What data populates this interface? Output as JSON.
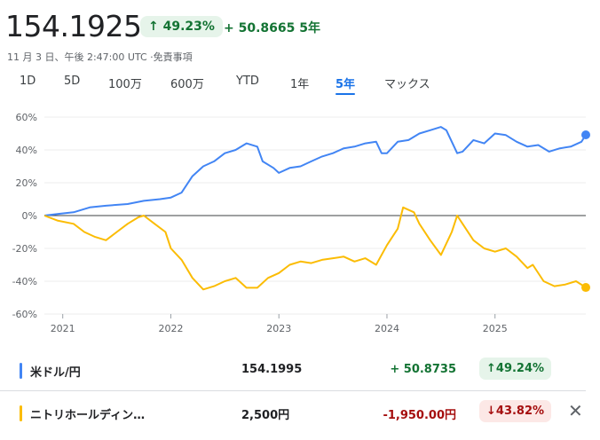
{
  "header": {
    "price": "154.1925",
    "change_pct": "49.23%",
    "change_arrow": "↑",
    "change_abs": "+ 50.8665",
    "change_period": "5年",
    "meta": "11 月 3 日、午後 2:47:00 UTC ·免責事項"
  },
  "tabs": [
    {
      "label": "1D",
      "active": false
    },
    {
      "label": "5D",
      "active": false
    },
    {
      "label": "100万",
      "active": false
    },
    {
      "label": "600万",
      "active": false
    },
    {
      "label": "YTD",
      "active": false
    },
    {
      "label": "1年",
      "active": false
    },
    {
      "label": "5年",
      "active": true
    },
    {
      "label": "マックス",
      "active": false
    }
  ],
  "comparison": [
    {
      "name": "米ドル/円",
      "value": "154.1995",
      "delta": "+ 50.8735",
      "pct": "49.24%",
      "arrow": "↑",
      "color": "#4285f4",
      "direction": "up"
    },
    {
      "name": "ニトリホールディン…",
      "value": "2,500円",
      "delta": "-1,950.00円",
      "pct": "43.82%",
      "arrow": "↓",
      "color": "#fbbc04",
      "direction": "down",
      "close": "✕"
    }
  ],
  "colors": {
    "up": "#137333",
    "down": "#a50e0e",
    "usdjpy": "#4285f4",
    "nitori": "#fbbc04",
    "active_tab": "#1a73e8"
  },
  "chart_data": {
    "type": "line",
    "ylim": [
      -60,
      60
    ],
    "yticks": [
      "60%",
      "40%",
      "20%",
      "0%",
      "-20%",
      "-40%",
      "-60%"
    ],
    "ytick_values": [
      60,
      40,
      20,
      0,
      -20,
      -40,
      -60
    ],
    "xlim": [
      2020.83,
      2025.84
    ],
    "xticks": [
      "2021",
      "2022",
      "2023",
      "2024",
      "2025"
    ],
    "xtick_values": [
      2021,
      2022,
      2023,
      2024,
      2025
    ],
    "grid": true,
    "series": [
      {
        "name": "米ドル/円",
        "color": "#4285f4",
        "x": [
          2020.83,
          2020.95,
          2021.1,
          2021.25,
          2021.4,
          2021.6,
          2021.75,
          2021.9,
          2022.0,
          2022.1,
          2022.2,
          2022.3,
          2022.4,
          2022.5,
          2022.6,
          2022.7,
          2022.8,
          2022.85,
          2022.95,
          2023.0,
          2023.1,
          2023.2,
          2023.3,
          2023.4,
          2023.5,
          2023.6,
          2023.7,
          2023.8,
          2023.9,
          2023.95,
          2024.0,
          2024.1,
          2024.2,
          2024.3,
          2024.4,
          2024.5,
          2024.55,
          2024.65,
          2024.7,
          2024.8,
          2024.9,
          2025.0,
          2025.1,
          2025.2,
          2025.3,
          2025.4,
          2025.5,
          2025.6,
          2025.7,
          2025.8,
          2025.84
        ],
        "y": [
          0,
          1,
          2,
          5,
          6,
          7,
          9,
          10,
          11,
          14,
          24,
          30,
          33,
          38,
          40,
          44,
          42,
          33,
          29,
          26,
          29,
          30,
          33,
          36,
          38,
          41,
          42,
          44,
          45,
          38,
          38,
          45,
          46,
          50,
          52,
          54,
          52,
          38,
          39,
          46,
          44,
          50,
          49,
          45,
          42,
          43,
          39,
          41,
          42,
          45,
          49.2
        ]
      },
      {
        "name": "ニトリホールディン…",
        "color": "#fbbc04",
        "x": [
          2020.83,
          2020.95,
          2021.1,
          2021.2,
          2021.3,
          2021.4,
          2021.5,
          2021.6,
          2021.7,
          2021.75,
          2021.85,
          2021.95,
          2022.0,
          2022.1,
          2022.2,
          2022.3,
          2022.4,
          2022.5,
          2022.6,
          2022.7,
          2022.8,
          2022.9,
          2023.0,
          2023.1,
          2023.2,
          2023.3,
          2023.4,
          2023.5,
          2023.6,
          2023.7,
          2023.8,
          2023.9,
          2024.0,
          2024.1,
          2024.15,
          2024.25,
          2024.3,
          2024.4,
          2024.5,
          2024.6,
          2024.65,
          2024.7,
          2024.8,
          2024.9,
          2025.0,
          2025.1,
          2025.2,
          2025.3,
          2025.35,
          2025.45,
          2025.55,
          2025.65,
          2025.75,
          2025.84
        ],
        "y": [
          0,
          -3,
          -5,
          -10,
          -13,
          -15,
          -10,
          -5,
          -1,
          0,
          -5,
          -10,
          -20,
          -27,
          -38,
          -45,
          -43,
          -40,
          -38,
          -44,
          -44,
          -38,
          -35,
          -30,
          -28,
          -29,
          -27,
          -26,
          -25,
          -28,
          -26,
          -30,
          -18,
          -8,
          5,
          2,
          -5,
          -15,
          -24,
          -10,
          0,
          -5,
          -15,
          -20,
          -22,
          -20,
          -25,
          -32,
          -30,
          -40,
          -43,
          -42,
          -40,
          -43.8
        ]
      }
    ]
  }
}
